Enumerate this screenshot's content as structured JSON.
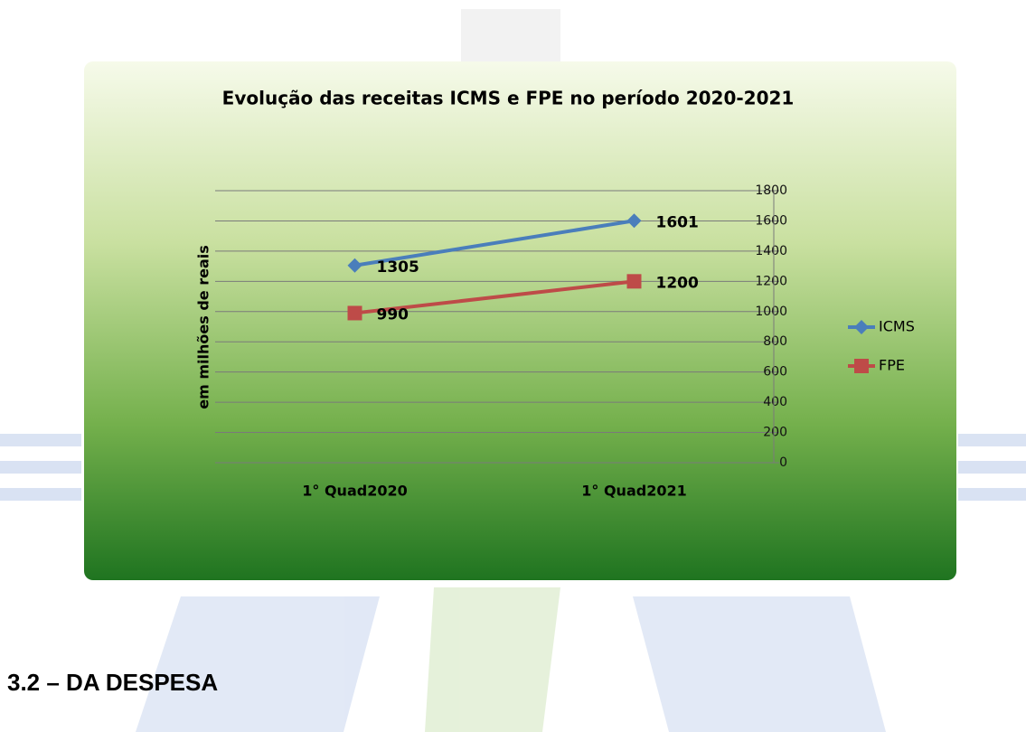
{
  "chart_data": {
    "type": "line",
    "title": "Evolução das receitas ICMS e FPE no período 2020-2021",
    "y_label": "em milhões de reais",
    "categories": [
      "1° Quad2020",
      "1° Quad2021"
    ],
    "series": [
      {
        "name": "ICMS",
        "color": "#4a7ebb",
        "marker": "diamond",
        "values": [
          1305,
          1601
        ]
      },
      {
        "name": "FPE",
        "color": "#be4b48",
        "marker": "square",
        "values": [
          990,
          1200
        ]
      }
    ],
    "ylim": [
      0,
      1800
    ],
    "yticks": [
      0,
      200,
      400,
      600,
      800,
      1000,
      1200,
      1400,
      1600,
      1800
    ],
    "grid": true,
    "y_axis_side": "right",
    "legend": "right"
  },
  "heading": "3.2 – DA DESPESA"
}
